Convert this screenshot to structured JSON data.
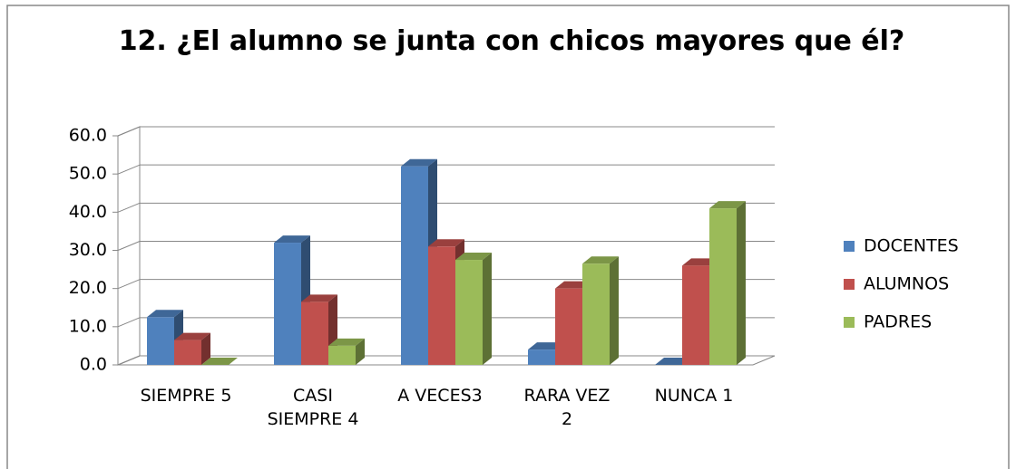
{
  "chart_data": {
    "type": "bar3d",
    "title": "12. ¿El alumno se junta con chicos mayores que él?",
    "categories": [
      "SIEMPRE 5",
      "CASI SIEMPRE 4",
      "A VECES3",
      "RARA VEZ 2",
      "NUNCA 1"
    ],
    "series": [
      {
        "name": "DOCENTES",
        "color": "#4f81bd",
        "values": [
          12.5,
          32,
          52,
          4,
          0
        ]
      },
      {
        "name": "ALUMNOS",
        "color": "#c0504d",
        "values": [
          6.5,
          16.5,
          31,
          20,
          26
        ]
      },
      {
        "name": "PADRES",
        "color": "#9bbb59",
        "values": [
          0,
          5,
          27.5,
          26.5,
          41
        ]
      }
    ],
    "ylim": [
      0,
      60
    ],
    "yticks": [
      {
        "value": 0,
        "label": "0.0"
      },
      {
        "value": 10,
        "label": "10.0"
      },
      {
        "value": 20,
        "label": "20.0"
      },
      {
        "value": 30,
        "label": "30.0"
      },
      {
        "value": 40,
        "label": "40.0"
      },
      {
        "value": 50,
        "label": "50.0"
      },
      {
        "value": 60,
        "label": "60.0"
      }
    ],
    "grid": true,
    "legend": "right"
  }
}
